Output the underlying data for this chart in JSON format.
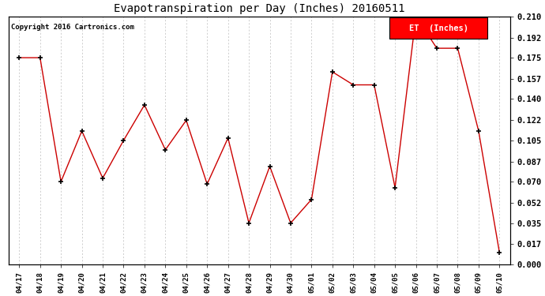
{
  "title": "Evapotranspiration per Day (Inches) 20160511",
  "copyright": "Copyright 2016 Cartronics.com",
  "legend_label": "ET  (Inches)",
  "legend_bg": "#ff0000",
  "legend_text_color": "#ffffff",
  "line_color": "#cc0000",
  "marker_color": "#000000",
  "bg_color": "#ffffff",
  "grid_color": "#bbbbbb",
  "dates": [
    "04/17",
    "04/18",
    "04/19",
    "04/20",
    "04/21",
    "04/22",
    "04/23",
    "04/24",
    "04/25",
    "04/26",
    "04/27",
    "04/28",
    "04/29",
    "04/30",
    "05/01",
    "05/02",
    "05/03",
    "05/04",
    "05/05",
    "05/06",
    "05/07",
    "05/08",
    "05/09",
    "05/10"
  ],
  "values": [
    0.175,
    0.175,
    0.07,
    0.113,
    0.073,
    0.105,
    0.135,
    0.097,
    0.122,
    0.068,
    0.107,
    0.035,
    0.083,
    0.035,
    0.055,
    0.163,
    0.152,
    0.152,
    0.065,
    0.21,
    0.183,
    0.183,
    0.113,
    0.01
  ],
  "ylim": [
    0.0,
    0.21
  ],
  "yticks": [
    0.0,
    0.017,
    0.035,
    0.052,
    0.07,
    0.087,
    0.105,
    0.122,
    0.14,
    0.157,
    0.175,
    0.192,
    0.21
  ]
}
